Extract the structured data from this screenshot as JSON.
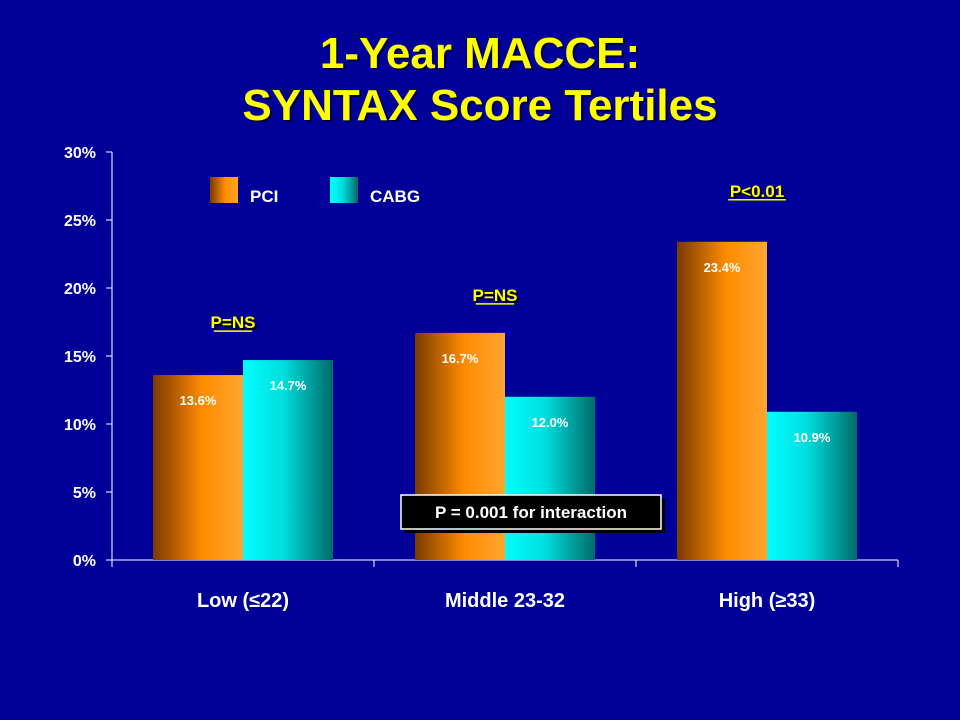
{
  "title": {
    "line1": "1-Year MACCE:",
    "line2": "SYNTAX Score Tertiles"
  },
  "chart_data": {
    "type": "bar",
    "categories": [
      "Low (≤22)",
      "Middle 23-32",
      "High (≥33)"
    ],
    "series": [
      {
        "name": "PCI",
        "values": [
          13.6,
          16.7,
          23.4
        ],
        "labels": [
          "13.6%",
          "16.7%",
          "23.4%"
        ],
        "color": "#FF8C00"
      },
      {
        "name": "CABG",
        "values": [
          14.7,
          12.0,
          10.9
        ],
        "labels": [
          "14.7%",
          "12.0%",
          "10.9%"
        ],
        "color": "#00DDDD"
      }
    ],
    "y_ticks": [
      0,
      5,
      10,
      15,
      20,
      25,
      30
    ],
    "y_tick_labels": [
      "0%",
      "5%",
      "10%",
      "15%",
      "20%",
      "25%",
      "30%"
    ],
    "ylim": [
      0,
      30
    ],
    "legend_position": "top-left",
    "grid": false,
    "annotations": {
      "p_values": [
        "P=NS",
        "P=NS",
        "P<0.01"
      ],
      "interaction": "P = 0.001 for interaction"
    }
  }
}
